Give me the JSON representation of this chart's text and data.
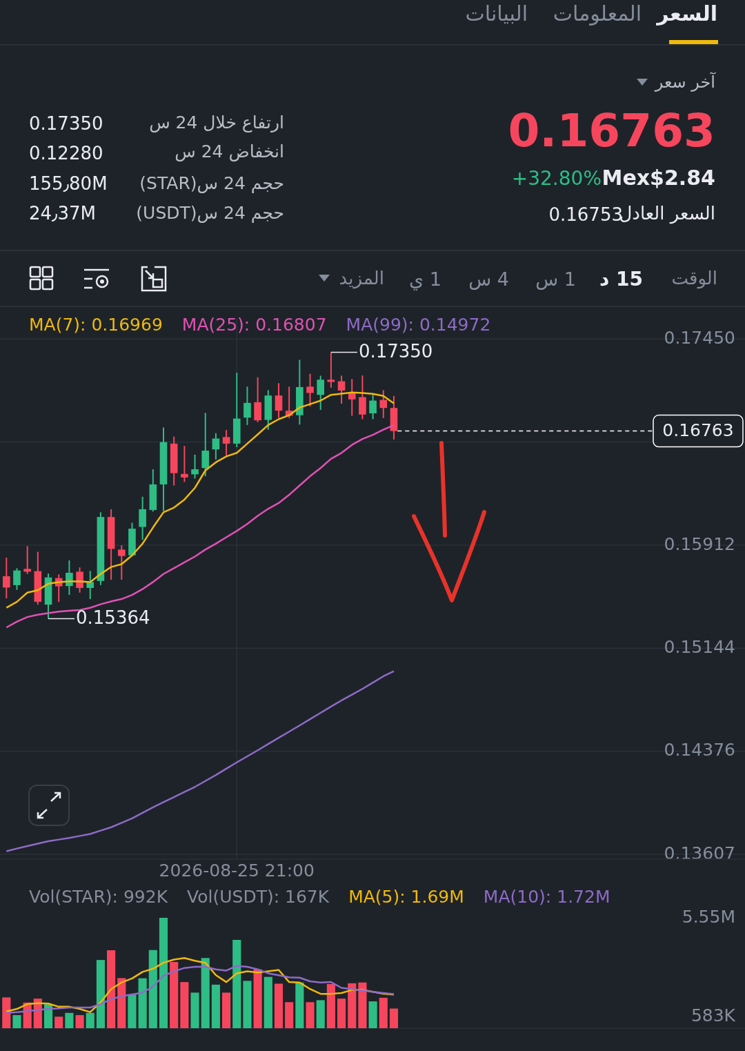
{
  "chart_data": [
    {
      "type": "other",
      "annotations": [
        "السعر",
        "المعلومات",
        "البيانات",
        "آخر سعر",
        "0.16763",
        "Mex$2.84",
        "+32.80%",
        "السعر العادل",
        "0.16753",
        "ارتفاع خلال 24 س",
        "0.17350",
        "انخفاض 24 س",
        "0.12280",
        "حجم 24 س(STAR)",
        "155٫80M",
        "حجم 24 س(USDT)",
        "24٫37M",
        "الوقت",
        "15 د",
        "1 س",
        "4 س",
        "1 ي",
        "المزيد"
      ]
    },
    {
      "type": "candlestick",
      "categories": [
        null,
        null,
        null,
        null,
        null,
        null,
        null,
        null,
        null,
        null,
        null,
        null,
        null,
        null,
        null,
        null,
        null,
        null,
        null,
        null,
        null,
        null,
        "2026-08-25 21:00",
        null,
        null,
        null,
        null,
        null,
        null,
        null,
        null,
        null,
        null,
        null,
        null,
        null,
        null,
        null
      ],
      "ohlc": [
        [
          0.1568,
          0.15818,
          0.15515,
          0.15596
        ],
        [
          0.15614,
          0.1574,
          0.15579,
          0.15723
        ],
        [
          0.15735,
          0.15905,
          0.15697,
          0.15714
        ],
        [
          0.15718,
          0.15862,
          0.15468,
          0.15489
        ],
        [
          0.15468,
          0.157,
          0.15364,
          0.15671
        ],
        [
          0.15666,
          0.15694,
          0.15489,
          0.15605
        ],
        [
          0.15607,
          0.15798,
          0.15541,
          0.15706
        ],
        [
          0.15714,
          0.15746,
          0.15558,
          0.15593
        ],
        [
          0.15593,
          0.1572,
          0.1551,
          0.15637
        ],
        [
          0.15645,
          0.16157,
          0.15614,
          0.16122
        ],
        [
          0.16122,
          0.1618,
          0.15654,
          0.15884
        ],
        [
          0.15879,
          0.15911,
          0.15654,
          0.15831
        ],
        [
          0.15836,
          0.16079,
          0.15827,
          0.16035
        ],
        [
          0.16048,
          0.16273,
          0.15952,
          0.1618
        ],
        [
          0.16174,
          0.16478,
          0.16162,
          0.16365
        ],
        [
          0.16365,
          0.1679,
          0.16166,
          0.16681
        ],
        [
          0.16669,
          0.16721,
          0.16357,
          0.16449
        ],
        [
          0.16443,
          0.16652,
          0.16383,
          0.16417
        ],
        [
          0.1644,
          0.16587,
          0.16409,
          0.16478
        ],
        [
          0.16487,
          0.16898,
          0.16426,
          0.16617
        ],
        [
          0.16626,
          0.16747,
          0.16551,
          0.16707
        ],
        [
          0.16718,
          0.1677,
          0.16582,
          0.16669
        ],
        [
          0.16669,
          0.17198,
          0.16643,
          0.16856
        ],
        [
          0.16863,
          0.17094,
          0.16808,
          0.16973
        ],
        [
          0.16978,
          0.17164,
          0.16829,
          0.16843
        ],
        [
          0.16846,
          0.17068,
          0.16773,
          0.17028
        ],
        [
          0.17028,
          0.1712,
          0.1686,
          0.16915
        ],
        [
          0.16915,
          0.17094,
          0.1686,
          0.16877
        ],
        [
          0.16881,
          0.17294,
          0.16811,
          0.17091
        ],
        [
          0.17094,
          0.1719,
          0.16947,
          0.17047
        ],
        [
          0.17033,
          0.17176,
          0.16921,
          0.17146
        ],
        [
          0.17146,
          0.1735,
          0.17086,
          0.17129
        ],
        [
          0.17134,
          0.17176,
          0.16967,
          0.17065
        ],
        [
          0.17051,
          0.17151,
          0.16877,
          0.16999
        ],
        [
          0.17016,
          0.17178,
          0.16851,
          0.16886
        ],
        [
          0.16895,
          0.17033,
          0.16851,
          0.1699
        ],
        [
          0.16995,
          0.17068,
          0.1686,
          0.16935
        ],
        [
          0.16935,
          0.17025,
          0.167,
          0.16763
        ]
      ],
      "colors": [
        "#f6465d",
        "#2ebd85",
        "#f6465d",
        "#f6465d",
        "#2ebd85",
        "#f6465d",
        "#2ebd85",
        "#f6465d",
        "#2ebd85",
        "#2ebd85",
        "#f6465d",
        "#f6465d",
        "#2ebd85",
        "#2ebd85",
        "#2ebd85",
        "#2ebd85",
        "#f6465d",
        "#f6465d",
        "#2ebd85",
        "#2ebd85",
        "#2ebd85",
        "#f6465d",
        "#2ebd85",
        "#2ebd85",
        "#f6465d",
        "#2ebd85",
        "#f6465d",
        "#f6465d",
        "#2ebd85",
        "#f6465d",
        "#2ebd85",
        "#f6465d",
        "#f6465d",
        "#f6465d",
        "#f6465d",
        "#2ebd85",
        "#f6465d",
        "#f6465d"
      ],
      "series": [
        {
          "name": "MA(7): 0.16969",
          "type": "line",
          "color": "#f0b90b",
          "values": [
            0.15445,
            0.15489,
            0.15558,
            0.15576,
            0.15624,
            0.15637,
            0.15642,
            0.15642,
            0.15637,
            0.15697,
            0.15749,
            0.1577,
            0.15836,
            0.15923,
            0.16044,
            0.16157,
            0.16192,
            0.16252,
            0.16339,
            0.16469,
            0.1653,
            0.16574,
            0.166,
            0.16669,
            0.16738,
            0.16808,
            0.16851,
            0.16881,
            0.16938,
            0.16964,
            0.1699,
            0.17033,
            0.17042,
            0.17051,
            0.17047,
            0.1704,
            0.17025,
            0.16969
          ]
        },
        {
          "name": "MA(25): 0.16807",
          "type": "line",
          "color": "#e052b5",
          "values": [
            0.15298,
            0.15341,
            0.15376,
            0.15393,
            0.15405,
            0.15416,
            0.15423,
            0.15428,
            0.15445,
            0.15471,
            0.15492,
            0.1551,
            0.15541,
            0.15584,
            0.15637,
            0.15697,
            0.1574,
            0.15784,
            0.15827,
            0.15879,
            0.15923,
            0.15971,
            0.16018,
            0.1607,
            0.16131,
            0.16183,
            0.16226,
            0.16287,
            0.16357,
            0.16426,
            0.16487,
            0.16556,
            0.166,
            0.1666,
            0.16704,
            0.16735,
            0.16773,
            0.16807
          ]
        },
        {
          "name": "MA(99): 0.14972",
          "type": "line",
          "color": "#8e6bc8",
          "values": [
            0.13629,
            0.13649,
            0.13668,
            0.13686,
            0.13704,
            0.13716,
            0.13728,
            0.13743,
            0.13758,
            0.13783,
            0.13808,
            0.13841,
            0.13874,
            0.13916,
            0.13957,
            0.13995,
            0.14033,
            0.14071,
            0.14109,
            0.14153,
            0.14197,
            0.14245,
            0.14292,
            0.14337,
            0.14382,
            0.14429,
            0.14475,
            0.14521,
            0.14567,
            0.14614,
            0.14661,
            0.14708,
            0.14754,
            0.14797,
            0.1484,
            0.14887,
            0.14934,
            0.14972
          ]
        }
      ],
      "ylim": [
        0.1357,
        0.176
      ],
      "yticks": [
        {
          "value": 0.1745,
          "label": "0.17450"
        },
        {
          "value": 0.16681,
          "label": null
        },
        {
          "value": 0.15912,
          "label": "0.15912"
        },
        {
          "value": 0.15144,
          "label": "0.15144"
        },
        {
          "value": 0.14376,
          "label": "0.14376"
        },
        {
          "value": 0.13607,
          "label": "0.13607"
        }
      ],
      "grid": true,
      "legend": "top",
      "ref_lines": [
        {
          "axis": "y",
          "value": 0.16763,
          "label": "0.16763",
          "color": "#ffffff",
          "line_style": "dashed"
        }
      ],
      "annotations": [
        "0.17350",
        "0.15364"
      ]
    },
    {
      "type": "bar",
      "categories": [
        null,
        null,
        null,
        null,
        null,
        null,
        null,
        null,
        null,
        null,
        null,
        null,
        null,
        null,
        null,
        null,
        null,
        null,
        null,
        null,
        null,
        null,
        null,
        null,
        null,
        null,
        null,
        null,
        null,
        null,
        null,
        null,
        null,
        null,
        null,
        null,
        null,
        null
      ],
      "series": [
        {
          "colors": [
            "#f6465d",
            "#2ebd85",
            "#f6465d",
            "#f6465d",
            "#2ebd85",
            "#f6465d",
            "#2ebd85",
            "#f6465d",
            "#2ebd85",
            "#2ebd85",
            "#f6465d",
            "#f6465d",
            "#2ebd85",
            "#2ebd85",
            "#2ebd85",
            "#2ebd85",
            "#f6465d",
            "#f6465d",
            "#2ebd85",
            "#2ebd85",
            "#2ebd85",
            "#f6465d",
            "#2ebd85",
            "#2ebd85",
            "#f6465d",
            "#2ebd85",
            "#f6465d",
            "#f6465d",
            "#2ebd85",
            "#f6465d",
            "#2ebd85",
            "#f6465d",
            "#f6465d",
            "#f6465d",
            "#f6465d",
            "#2ebd85",
            "#f6465d",
            "#f6465d"
          ],
          "values": [
            1550000,
            660000,
            1290000,
            1490000,
            1210000,
            580000,
            770000,
            660000,
            770000,
            3430000,
            3920000,
            2520000,
            1690000,
            2510000,
            3930000,
            5550000,
            3330000,
            2320000,
            1790000,
            3530000,
            2190000,
            1790000,
            4440000,
            2380000,
            2960000,
            2580000,
            2240000,
            1310000,
            2300000,
            1310000,
            1410000,
            2220000,
            1490000,
            2260000,
            2300000,
            1350000,
            1530000,
            990000
          ]
        },
        {
          "name": "MA(5): 1.69M",
          "type": "line",
          "color": "#f0b90b",
          "values": [
            840000,
            970000,
            1210000,
            1260000,
            1240000,
            1080000,
            1080000,
            970000,
            810000,
            1300000,
            1970000,
            2300000,
            2500000,
            2830000,
            2990000,
            3290000,
            3450000,
            3530000,
            3390000,
            3290000,
            2670000,
            2320000,
            2760000,
            2860000,
            2800000,
            2860000,
            2930000,
            2320000,
            2300000,
            1970000,
            1730000,
            1730000,
            1770000,
            1930000,
            1930000,
            1830000,
            1730000,
            1690000
          ]
        },
        {
          "name": "MA(10): 1.72M",
          "type": "line",
          "color": "#8e6bc8",
          "values": [
            770000,
            810000,
            860000,
            920000,
            970000,
            1000000,
            1040000,
            1040000,
            1040000,
            1210000,
            1460000,
            1610000,
            1700000,
            1790000,
            2100000,
            2630000,
            2860000,
            3030000,
            3090000,
            3090000,
            2960000,
            2900000,
            3130000,
            3090000,
            2960000,
            2760000,
            2660000,
            2560000,
            2540000,
            2360000,
            2300000,
            2320000,
            2030000,
            1970000,
            1900000,
            1830000,
            1770000,
            1720000
          ]
        }
      ],
      "ylim": [
        0,
        5550000
      ],
      "yticks": [
        {
          "value": 5550000,
          "label": "5.55M"
        },
        {
          "value": 583000,
          "label": "583K"
        }
      ],
      "legend": "top",
      "tick_labels": "y",
      "annotations": [
        "Vol(STAR): 992K",
        "Vol(USDT): 167K"
      ]
    }
  ]
}
